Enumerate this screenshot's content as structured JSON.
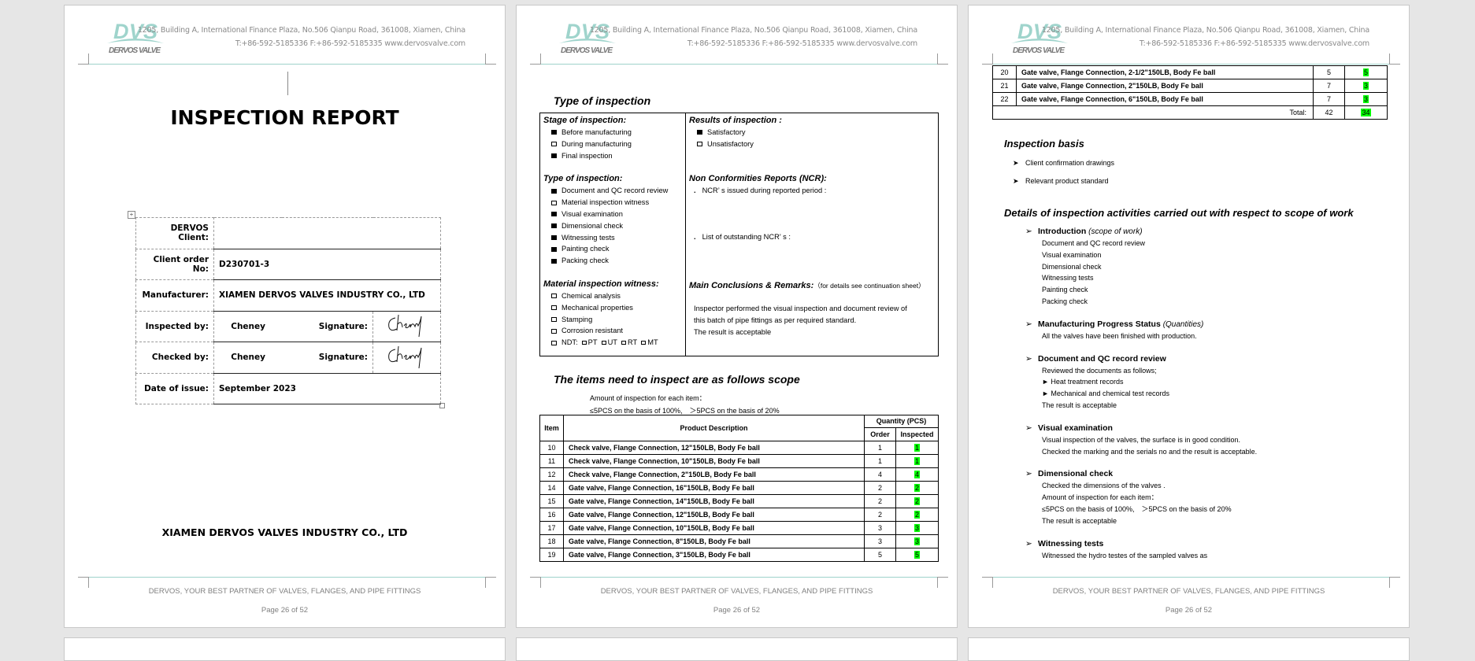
{
  "header": {
    "logo_mark": "DVS",
    "logo_name": "DERVOS VALVE",
    "address_line1": "1205, Building A, International Finance Plaza, No.506 Qianpu Road, 361008, Xiamen, China",
    "address_line2": "T:+86-592-5185336   F:+86-592-5185335   www.dervosvalve.com",
    "brand_color": "#9fd4cc"
  },
  "footer": {
    "tagline": "DERVOS, YOUR BEST PARTNER OF VALVES, FLANGES, AND PIPE FITTINGS",
    "page_number": "Page 26 of 52"
  },
  "cover": {
    "title": "INSPECTION REPORT",
    "fields": [
      {
        "label": "DERVOS Client:",
        "value": ""
      },
      {
        "label": "Client order No:",
        "value": "D230701-3"
      },
      {
        "label": "Manufacturer:",
        "value": "XIAMEN DERVOS VALVES INDUSTRY CO., LTD"
      },
      {
        "label": "Inspected by:",
        "value": "Cheney",
        "sig_label": "Signature:",
        "signature": "Cheney"
      },
      {
        "label": "Checked by:",
        "value": "Cheney",
        "sig_label": "Signature:",
        "signature": "Cheney"
      },
      {
        "label": "Date of issue:",
        "value": "September 2023"
      }
    ],
    "company": "XIAMEN DERVOS VALVES INDUSTRY CO., LTD"
  },
  "inspection": {
    "heading": "Type of inspection",
    "stage": {
      "title": "Stage of inspection:",
      "items": [
        {
          "label": "Before manufacturing",
          "checked": true
        },
        {
          "label": "During manufacturing",
          "checked": false
        },
        {
          "label": "Final inspection",
          "checked": true
        }
      ]
    },
    "type": {
      "title": "Type of inspection:",
      "items": [
        {
          "label": "Document and QC record review",
          "checked": true
        },
        {
          "label": "Material inspection witness",
          "checked": false
        },
        {
          "label": "Visual examination",
          "checked": true
        },
        {
          "label": "Dimensional check",
          "checked": true
        },
        {
          "label": "Witnessing tests",
          "checked": true
        },
        {
          "label": "Painting check",
          "checked": true
        },
        {
          "label": "Packing check",
          "checked": true
        }
      ]
    },
    "material": {
      "title": "Material inspection witness:",
      "items": [
        {
          "label": "Chemical analysis",
          "checked": false
        },
        {
          "label": "Mechanical properties",
          "checked": false
        },
        {
          "label": "Stamping",
          "checked": false
        },
        {
          "label": "Corrosion resistant",
          "checked": false
        }
      ],
      "ndt_label": "NDT:",
      "ndt": [
        "PT",
        "UT",
        "RT",
        "MT"
      ]
    },
    "results": {
      "title": "Results of inspection :",
      "items": [
        {
          "label": "Satisfactory",
          "checked": true
        },
        {
          "label": "Unsatisfactory",
          "checked": false
        }
      ]
    },
    "ncr": {
      "title": "Non Conformities Reports (NCR):",
      "issued": "NCR’ s issued during reported period :",
      "outstanding": "List of outstanding NCR’ s :"
    },
    "conclusions": {
      "title": "Main Conclusions & Remarks:",
      "note": "（for details see continuation sheet）",
      "lines": [
        "Inspector performed the visual inspection and document review of",
        "this batch of pipe fittings as per required standard.",
        "The result is acceptable"
      ]
    }
  },
  "scope": {
    "heading": "The items need to inspect are as follows scope",
    "amount_line1": "Amount of inspection for each item：",
    "amount_line2": "≤5PCS on the basis of 100%,　＞5PCS on the basis of 20%",
    "columns": {
      "item": "Item",
      "desc": "Product Description",
      "qty": "Quantity (PCS)",
      "order": "Order",
      "inspected": "Inspected"
    },
    "rows_page2": [
      {
        "item": "10",
        "desc": "Check valve, Flange Connection, 12\"150LB, Body Fe ball",
        "order": "1",
        "inspected": "1"
      },
      {
        "item": "11",
        "desc": "Check valve, Flange Connection, 10\"150LB, Body Fe ball",
        "order": "1",
        "inspected": "1"
      },
      {
        "item": "12",
        "desc": "Check valve, Flange Connection, 2\"150LB, Body Fe ball",
        "order": "4",
        "inspected": "4"
      },
      {
        "item": "14",
        "desc": "Gate valve, Flange Connection, 16\"150LB, Body Fe ball",
        "order": "2",
        "inspected": "2"
      },
      {
        "item": "15",
        "desc": "Gate valve, Flange Connection, 14\"150LB, Body Fe ball",
        "order": "2",
        "inspected": "2"
      },
      {
        "item": "16",
        "desc": "Gate valve, Flange Connection, 12\"150LB, Body Fe ball",
        "order": "2",
        "inspected": "2"
      },
      {
        "item": "17",
        "desc": "Gate valve, Flange Connection, 10\"150LB, Body Fe ball",
        "order": "3",
        "inspected": "3"
      },
      {
        "item": "18",
        "desc": "Gate valve, Flange Connection, 8\"150LB, Body Fe ball",
        "order": "3",
        "inspected": "3"
      },
      {
        "item": "19",
        "desc": "Gate valve, Flange Connection, 3\"150LB, Body Fe ball",
        "order": "5",
        "inspected": "5"
      }
    ],
    "rows_page3": [
      {
        "item": "20",
        "desc": "Gate valve, Flange Connection, 2-1/2\"150LB, Body Fe ball",
        "order": "5",
        "inspected": "5"
      },
      {
        "item": "21",
        "desc": "Gate valve, Flange Connection, 2\"150LB, Body Fe ball",
        "order": "7",
        "inspected": "3"
      },
      {
        "item": "22",
        "desc": "Gate valve, Flange Connection, 6\"150LB, Body Fe ball",
        "order": "7",
        "inspected": "3"
      }
    ],
    "total": {
      "label": "Total:",
      "order": "42",
      "inspected": "34"
    },
    "highlight_color": "#00ff00"
  },
  "basis": {
    "heading": "Inspection basis",
    "items": [
      "Client confirmation drawings",
      "Relevant product standard"
    ]
  },
  "details": {
    "heading": "Details of inspection activities carried out with respect to scope of work",
    "sections": [
      {
        "title": "Introduction",
        "note": "(scope of work)",
        "lines": [
          "Document and QC record review",
          "Visual examination",
          "Dimensional check",
          "Witnessing tests",
          "Painting check",
          "Packing check"
        ]
      },
      {
        "title": "Manufacturing Progress Status",
        "note": "(Quantities)",
        "lines": [
          "All the valves have been finished with production."
        ]
      },
      {
        "title": "Document and QC record review",
        "note": "",
        "lines": [
          "Reviewed the documents as follows;",
          "► Heat treatment records",
          "► Mechanical and chemical test records",
          "The result is acceptable"
        ]
      },
      {
        "title": "Visual examination",
        "note": "",
        "lines": [
          "Visual inspection of the valves, the surface is in good condition.",
          "Checked the marking and the serials no and the result is acceptable."
        ]
      },
      {
        "title": "Dimensional check",
        "note": "",
        "lines": [
          "Checked the dimensions of the valves .",
          "Amount of inspection for each item：",
          "≤5PCS on the basis of 100%,　＞5PCS on the basis of 20%",
          "The result is acceptable"
        ]
      },
      {
        "title": "Witnessing tests",
        "note": "",
        "lines": [
          "Witnessed the hydro testes of the sampled valves as"
        ]
      }
    ]
  }
}
